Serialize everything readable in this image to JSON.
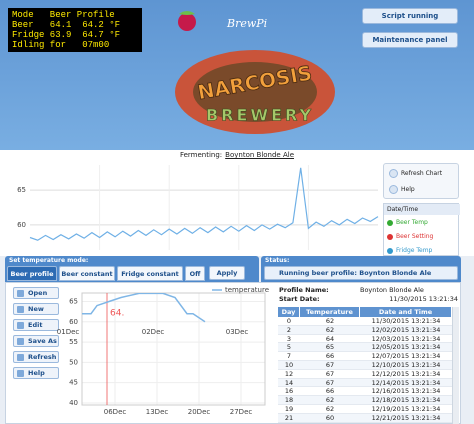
{
  "lcd": {
    "lines": [
      "Mode   Beer Profile",
      "Beer   64.1  64.2 °F",
      "Fridge 63.9  64.7 °F",
      "Idling for   07m00"
    ]
  },
  "logo": {
    "brand": "BrewPi",
    "name": "NARCOSIS",
    "sub": "BREWERY"
  },
  "top_buttons": [
    "Script running",
    "Maintenance panel"
  ],
  "fermenting": {
    "label": "Fermenting:",
    "beer": "Boynton Blonde Ale"
  },
  "log_chart": {
    "type": "line",
    "ylim": [
      56.4,
      68.6
    ],
    "yticks": [
      60,
      65
    ],
    "grid": true,
    "series": [
      {
        "color": "#6fb0e6",
        "values": [
          58.2,
          57.8,
          58.5,
          57.9,
          58.6,
          58.0,
          58.7,
          58.1,
          58.9,
          58.2,
          59.0,
          58.3,
          59.1,
          58.4,
          59.2,
          58.5,
          59.3,
          58.6,
          59.4,
          58.7,
          59.5,
          58.8,
          59.6,
          58.9,
          59.7,
          59.0,
          59.8,
          59.1,
          59.9,
          59.2,
          60.0,
          59.4,
          60.1,
          59.6,
          60.3,
          68.2,
          59.5,
          60.4,
          59.8,
          60.6,
          60.0,
          60.8,
          60.2,
          61.0,
          60.5,
          61.2
        ]
      }
    ]
  },
  "log_panel": {
    "buttons": [
      "Refresh Chart",
      "Help"
    ],
    "header": "Date/Time",
    "legend": [
      {
        "name": "Beer Temp",
        "color": "#33aa33"
      },
      {
        "name": "Beer Setting",
        "color": "#dd3333"
      },
      {
        "name": "Fridge Temp",
        "color": "#3399cc"
      }
    ]
  },
  "mode_panel": {
    "title": "Set temperature mode:",
    "tabs": [
      "Beer profile",
      "Beer constant",
      "Fridge constant",
      "Off"
    ],
    "apply": "Apply"
  },
  "status_panel": {
    "title": "Status:",
    "text": "Running beer profile: Boynton Blonde Ale"
  },
  "profile_buttons": [
    "Open",
    "New",
    "Edit",
    "Save As",
    "Refresh",
    "Help"
  ],
  "profile_chart": {
    "type": "line",
    "legend": "temperature",
    "color": "#7fb6e6",
    "xlim": [
      0.5,
      31
    ],
    "xticks": [
      {
        "value": 6,
        "label": "06Dec"
      },
      {
        "value": 13,
        "label": "13Dec"
      },
      {
        "value": 20,
        "label": "20Dec"
      },
      {
        "value": 27,
        "label": "27Dec"
      }
    ],
    "ylim": [
      39.5,
      67.1
    ],
    "yticks": [
      40,
      45,
      50,
      55,
      60,
      65
    ],
    "top_labels": [
      "01Dec",
      "02Dec",
      "03Dec"
    ],
    "marker_label": "64."
  },
  "profile_info": {
    "name_label": "Profile Name:",
    "name": "Boynton Blonde Ale",
    "start_label": "Start Date:",
    "start": "11/30/2015 13:21:34"
  },
  "profile_table": {
    "headers": [
      "Day",
      "Temperature",
      "Date and Time"
    ],
    "rows": [
      [
        0,
        62,
        "11/30/2015 13:21:34"
      ],
      [
        2,
        62,
        "12/02/2015 13:21:34"
      ],
      [
        3,
        64,
        "12/03/2015 13:21:34"
      ],
      [
        5,
        65,
        "12/05/2015 13:21:34"
      ],
      [
        7,
        66,
        "12/07/2015 13:21:34"
      ],
      [
        10,
        67,
        "12/10/2015 13:21:34"
      ],
      [
        12,
        67,
        "12/12/2015 13:21:34"
      ],
      [
        14,
        67,
        "12/14/2015 13:21:34"
      ],
      [
        16,
        66,
        "12/16/2015 13:21:34"
      ],
      [
        18,
        62,
        "12/18/2015 13:21:34"
      ],
      [
        19,
        62,
        "12/19/2015 13:21:34"
      ],
      [
        21,
        60,
        "12/21/2015 13:21:34"
      ]
    ]
  }
}
